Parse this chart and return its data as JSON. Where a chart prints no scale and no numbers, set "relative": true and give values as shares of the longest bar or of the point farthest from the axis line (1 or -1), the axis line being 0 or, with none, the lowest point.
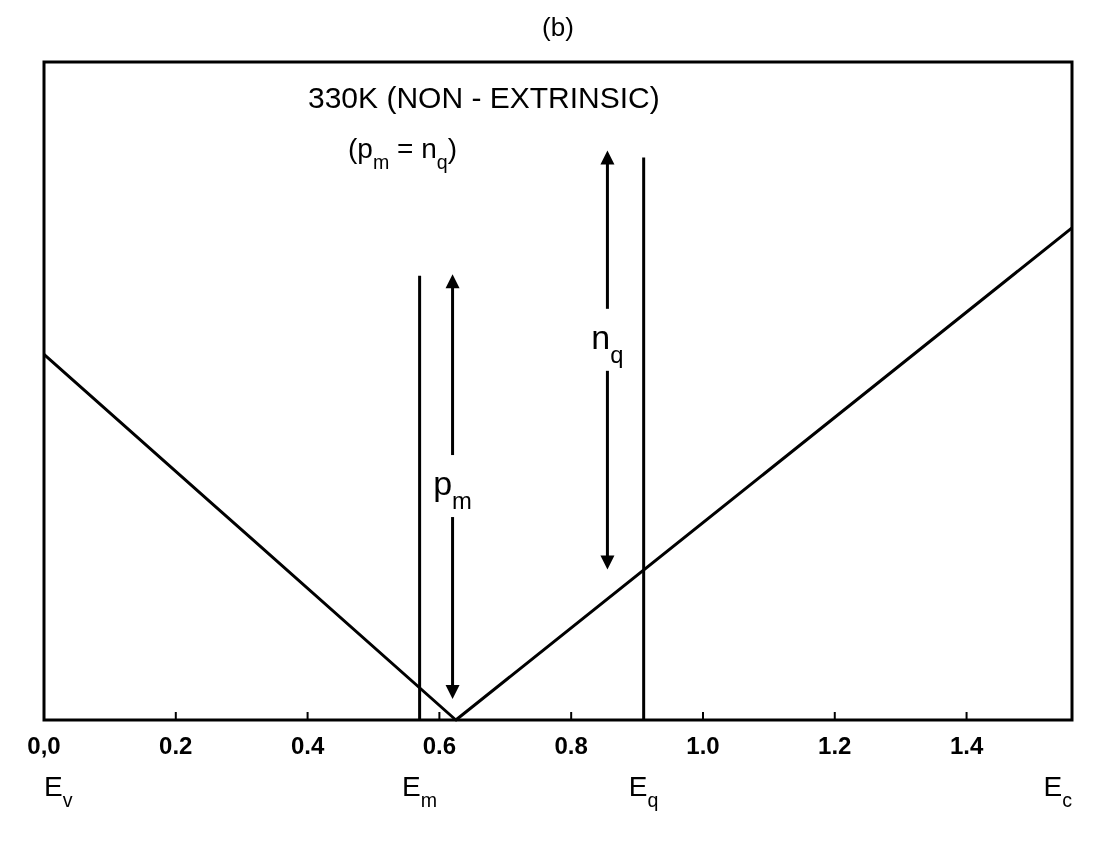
{
  "chart_data": {
    "type": "line",
    "title": "(b)",
    "relative": true,
    "xlim": [
      0,
      1.56
    ],
    "xticks": [
      {
        "value": 0,
        "label": "0,0"
      },
      0.2,
      0.4,
      0.6,
      0.8,
      {
        "value": 1.0,
        "label": "1.0"
      },
      1.2,
      1.4
    ],
    "series": [
      {
        "color": "#000000",
        "x": [
          0,
          0.625,
          1.56
        ],
        "values": [
          0.65,
          0,
          0.875
        ]
      },
      {
        "color": "#000000",
        "x": [
          0.57,
          0.57
        ],
        "values": [
          0,
          0.79
        ]
      },
      {
        "color": "#000000",
        "x": [
          0.91,
          0.91
        ],
        "values": [
          0,
          1
        ]
      },
      {
        "color": "#000000",
        "x": [
          0.62,
          0.62
        ],
        "values": [
          0.05,
          0.78
        ],
        "marker": "triangle"
      },
      {
        "color": "#000000",
        "x": [
          0.855,
          0.855
        ],
        "values": [
          0.28,
          1
        ],
        "marker": "triangle"
      }
    ],
    "annotations": [
      "330K (NON - EXTRINSIC)",
      "(p$_{m}$ = n$_{q}$)",
      "E$_{v}$",
      "E$_{c}$",
      {
        "text": "p$_{m}$",
        "x": 0.62,
        "y": 0.4
      },
      {
        "text": "n$_{q}$",
        "x": 0.855,
        "y": 0.66
      },
      {
        "text": "E$_{m}$",
        "x": 0.57,
        "y": 0
      },
      {
        "text": "E$_{q}$",
        "x": 0.91,
        "y": 0
      }
    ],
    "grid": false,
    "legend": false
  }
}
